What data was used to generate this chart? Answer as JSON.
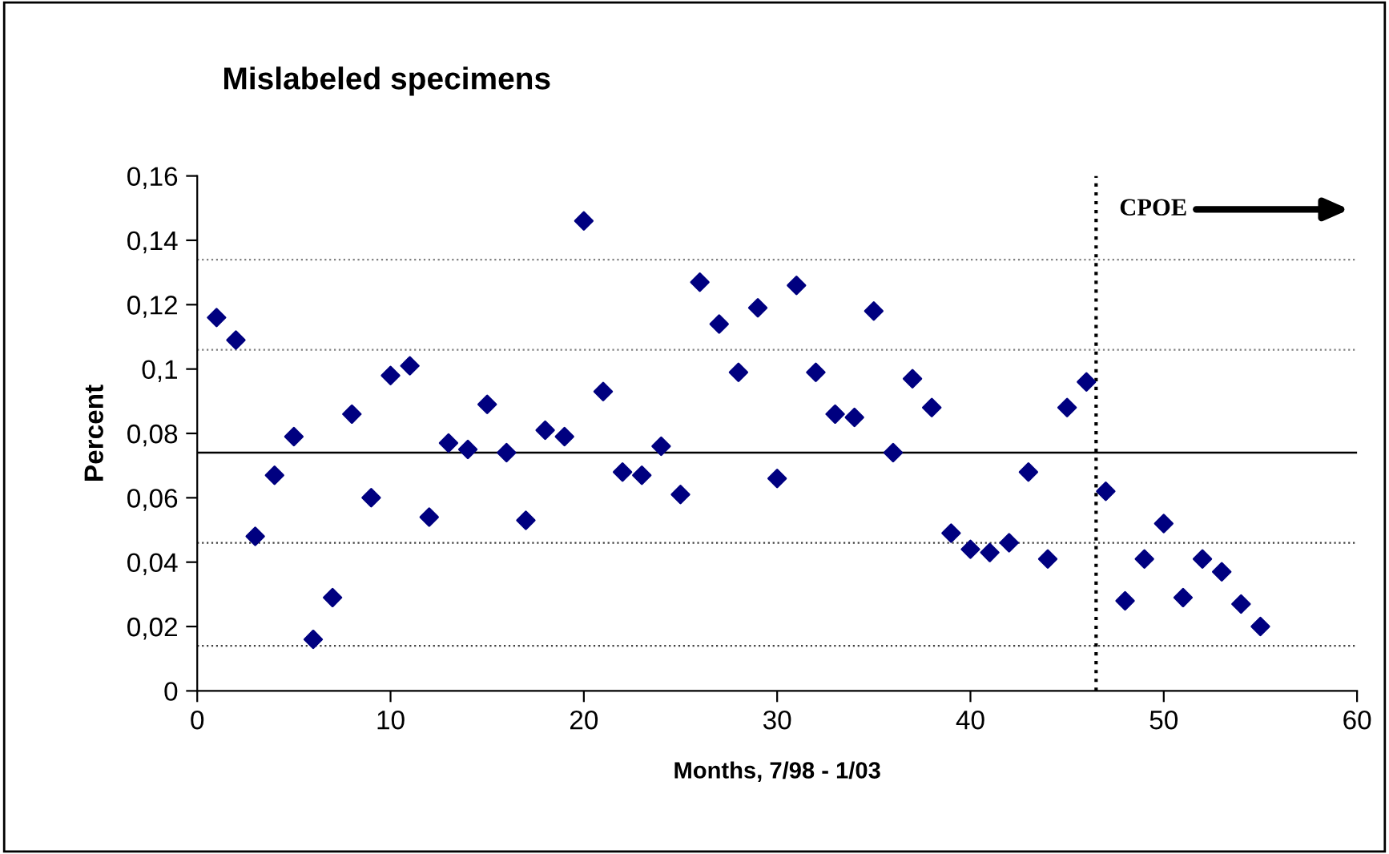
{
  "chart_data": {
    "type": "scatter",
    "title": "Mislabeled specimens",
    "xlabel": "Months, 7/98 - 1/03",
    "ylabel": "Percent",
    "x": [
      1,
      2,
      3,
      4,
      5,
      6,
      7,
      8,
      9,
      10,
      11,
      12,
      13,
      14,
      15,
      16,
      17,
      18,
      19,
      20,
      21,
      22,
      23,
      24,
      25,
      26,
      27,
      28,
      29,
      30,
      31,
      32,
      33,
      34,
      35,
      36,
      37,
      38,
      39,
      40,
      41,
      42,
      43,
      44,
      45,
      46,
      47,
      48,
      49,
      50,
      51,
      52,
      53,
      54,
      55
    ],
    "series": [
      {
        "color": "#000080",
        "values": [
          0.116,
          0.109,
          0.048,
          0.067,
          0.079,
          0.016,
          0.029,
          0.086,
          0.06,
          0.098,
          0.101,
          0.054,
          0.077,
          0.075,
          0.089,
          0.074,
          0.053,
          0.081,
          0.079,
          0.146,
          0.093,
          0.068,
          0.067,
          0.076,
          0.061,
          0.127,
          0.114,
          0.099,
          0.119,
          0.066,
          0.126,
          0.099,
          0.086,
          0.085,
          0.118,
          0.074,
          0.097,
          0.088,
          0.049,
          0.044,
          0.043,
          0.046,
          0.068,
          0.041,
          0.088,
          0.096,
          0.062,
          0.028,
          0.041,
          0.052,
          0.029,
          0.041,
          0.037,
          0.027,
          0.02
        ]
      }
    ],
    "marker": "diamond",
    "grid": false,
    "xlim": [
      0,
      60
    ],
    "xticks": [
      0,
      10,
      20,
      30,
      40,
      50,
      60
    ],
    "ylim": [
      0,
      0.16
    ],
    "yticks": [
      0,
      {
        "value": 0.02,
        "label": "0,02"
      },
      {
        "value": 0.04,
        "label": "0,04"
      },
      {
        "value": 0.06,
        "label": "0,06"
      },
      {
        "value": 0.08,
        "label": "0,08"
      },
      {
        "value": 0.1,
        "label": "0,1"
      },
      {
        "value": 0.12,
        "label": "0,12"
      },
      {
        "value": 0.14,
        "label": "0,14"
      },
      {
        "value": 0.16,
        "label": "0,16"
      }
    ],
    "ref_lines": [
      {
        "axis": "y",
        "value": 0.074,
        "color": "#000000",
        "line_style": "solid"
      },
      {
        "axis": "y",
        "value": 0.106,
        "color": "#808080",
        "line_style": "dotted"
      },
      {
        "axis": "y",
        "value": 0.134,
        "color": "#808080",
        "line_style": "dotted"
      },
      {
        "axis": "y",
        "value": 0.046,
        "color": "#404040",
        "line_style": "dotted"
      },
      {
        "axis": "y",
        "value": 0.014,
        "color": "#404040",
        "line_style": "dotted"
      },
      {
        "axis": "x",
        "value": 46.5,
        "color": "#000000",
        "line_style": "dotted",
        "label": "CPOE"
      }
    ]
  }
}
